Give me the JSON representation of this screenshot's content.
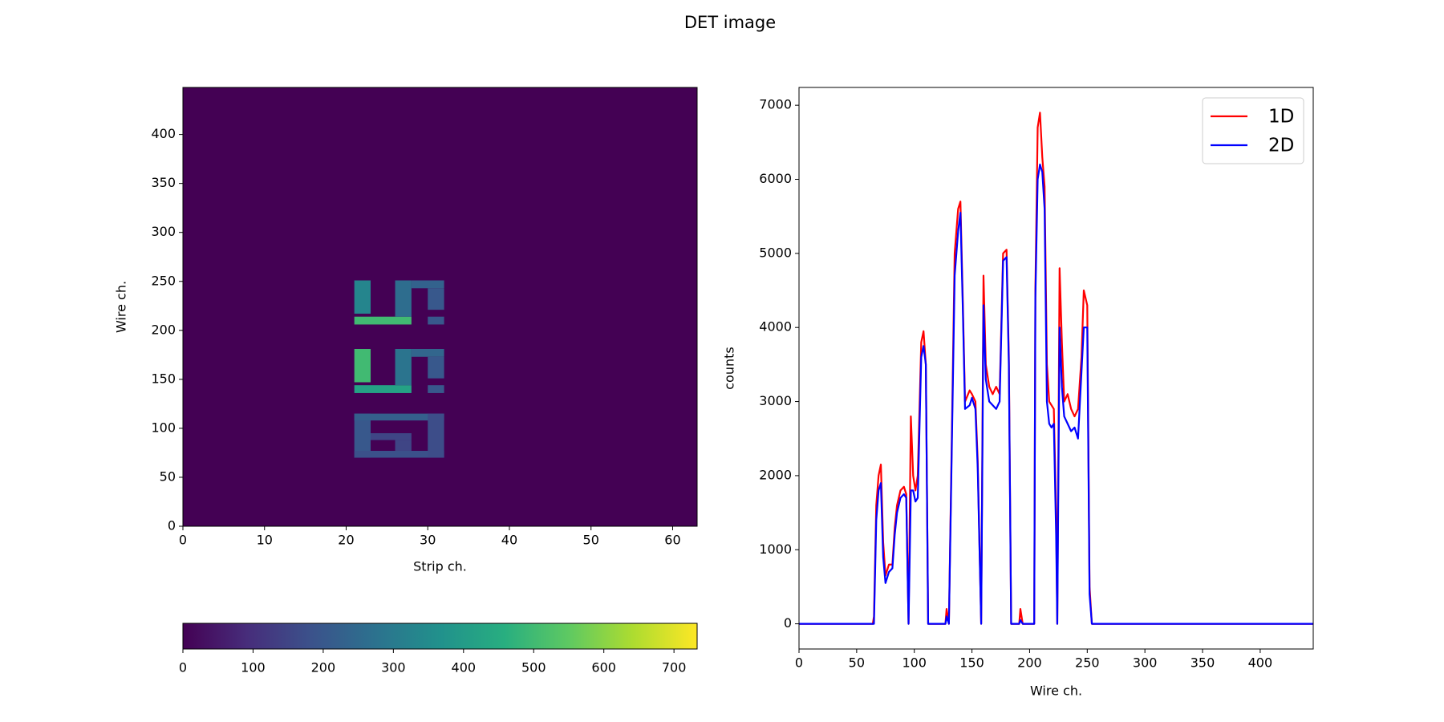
{
  "title": "DET image",
  "chart_data": [
    {
      "type": "heatmap",
      "xlabel": "Strip ch.",
      "ylabel": "Wire ch.",
      "xlim": [
        0,
        63
      ],
      "ylim": [
        0,
        448
      ],
      "xticks": [
        0,
        10,
        20,
        30,
        40,
        50,
        60
      ],
      "yticks": [
        0,
        50,
        100,
        150,
        200,
        250,
        300,
        350,
        400
      ],
      "colormap": "viridis",
      "background": 0,
      "cells": [
        {
          "x": [
            21,
            23
          ],
          "y": [
            217,
            251
          ],
          "value": 330
        },
        {
          "x": [
            21,
            28
          ],
          "y": [
            206,
            214
          ],
          "value": 500
        },
        {
          "x": [
            26,
            28
          ],
          "y": [
            214,
            251
          ],
          "value": 260
        },
        {
          "x": [
            28,
            32
          ],
          "y": [
            243,
            251
          ],
          "value": 230
        },
        {
          "x": [
            30,
            32
          ],
          "y": [
            221,
            243
          ],
          "value": 200
        },
        {
          "x": [
            30,
            32
          ],
          "y": [
            206,
            214
          ],
          "value": 200
        },
        {
          "x": [
            21,
            23
          ],
          "y": [
            147,
            181
          ],
          "value": 500
        },
        {
          "x": [
            21,
            28
          ],
          "y": [
            136,
            144
          ],
          "value": 420
        },
        {
          "x": [
            26,
            28
          ],
          "y": [
            144,
            181
          ],
          "value": 280
        },
        {
          "x": [
            28,
            32
          ],
          "y": [
            173,
            181
          ],
          "value": 240
        },
        {
          "x": [
            30,
            32
          ],
          "y": [
            151,
            173
          ],
          "value": 200
        },
        {
          "x": [
            30,
            32
          ],
          "y": [
            136,
            144
          ],
          "value": 200
        },
        {
          "x": [
            21,
            23
          ],
          "y": [
            70,
            115
          ],
          "value": 200
        },
        {
          "x": [
            21,
            32
          ],
          "y": [
            108,
            115
          ],
          "value": 220
        },
        {
          "x": [
            21,
            32
          ],
          "y": [
            70,
            77
          ],
          "value": 180
        },
        {
          "x": [
            30,
            32
          ],
          "y": [
            70,
            115
          ],
          "value": 170
        },
        {
          "x": [
            23,
            28
          ],
          "y": [
            88,
            95
          ],
          "value": 150
        },
        {
          "x": [
            26,
            28
          ],
          "y": [
            77,
            88
          ],
          "value": 150
        }
      ],
      "colorbar": {
        "lim": [
          0,
          733
        ],
        "ticks": [
          0,
          100,
          200,
          300,
          400,
          500,
          600,
          700
        ]
      }
    },
    {
      "type": "line",
      "xlabel": "Wire ch.",
      "ylabel": "counts",
      "xlim": [
        0,
        446
      ],
      "ylim": [
        -340,
        7240
      ],
      "xticks": [
        0,
        50,
        100,
        150,
        200,
        250,
        300,
        350,
        400
      ],
      "yticks": [
        0,
        1000,
        2000,
        3000,
        4000,
        5000,
        6000,
        7000
      ],
      "legend": "upper right",
      "x": [
        0,
        64,
        65,
        67,
        69,
        71,
        73,
        75,
        78,
        81,
        83,
        85,
        88,
        91,
        93,
        95,
        97,
        99,
        101,
        103,
        106,
        108,
        110,
        112,
        127,
        128,
        130,
        135,
        138,
        140,
        142,
        144,
        148,
        150,
        153,
        155,
        158,
        160,
        162,
        165,
        168,
        171,
        174,
        177,
        180,
        182,
        184,
        191,
        192,
        194,
        204,
        205,
        207,
        209,
        211,
        213,
        215,
        217,
        219,
        221,
        223,
        224,
        226,
        228,
        230,
        233,
        236,
        239,
        242,
        245,
        247,
        250,
        252,
        254,
        446
      ],
      "series": [
        {
          "name": "1D",
          "color": "#ff0000",
          "values": [
            0,
            0,
            100,
            1600,
            2000,
            2150,
            1100,
            650,
            800,
            800,
            1300,
            1600,
            1800,
            1850,
            1750,
            0,
            2800,
            2000,
            1800,
            2000,
            3800,
            3950,
            3500,
            0,
            0,
            200,
            0,
            5000,
            5600,
            5700,
            4400,
            3000,
            3150,
            3100,
            3000,
            2200,
            0,
            4700,
            3500,
            3200,
            3100,
            3200,
            3100,
            5000,
            5050,
            3600,
            0,
            0,
            200,
            0,
            0,
            4500,
            6700,
            6900,
            6300,
            5900,
            3500,
            3000,
            2950,
            2900,
            1500,
            0,
            4800,
            3800,
            3000,
            3100,
            2900,
            2800,
            2900,
            3600,
            4500,
            4300,
            500,
            0,
            0
          ]
        },
        {
          "name": "2D",
          "color": "#0000ff",
          "values": [
            0,
            0,
            0,
            1400,
            1800,
            1900,
            900,
            550,
            700,
            750,
            1200,
            1500,
            1700,
            1750,
            1700,
            0,
            1800,
            1800,
            1650,
            1700,
            3600,
            3750,
            3500,
            0,
            0,
            100,
            0,
            4700,
            5300,
            5550,
            4300,
            2900,
            2950,
            3050,
            2900,
            2100,
            0,
            4300,
            3300,
            3000,
            2950,
            2900,
            3000,
            4900,
            4950,
            3500,
            0,
            0,
            50,
            0,
            0,
            4400,
            6000,
            6200,
            6100,
            5600,
            3000,
            2700,
            2650,
            2700,
            1200,
            0,
            4000,
            3200,
            2800,
            2700,
            2600,
            2650,
            2500,
            3400,
            4000,
            4000,
            400,
            0,
            0
          ]
        }
      ]
    }
  ]
}
